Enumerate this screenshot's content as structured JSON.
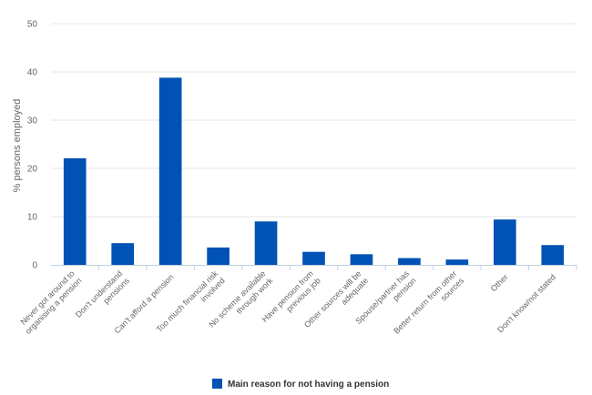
{
  "chart_data": {
    "type": "bar",
    "categories": [
      "Never got around to organising a pension",
      "Don't understand pensions",
      "Can't afford a pension",
      "Too much financial risk involved",
      "No scheme available through work",
      "Have pension from previous job",
      "Other sources will be adequate",
      "Spouse/partner has pension",
      "Better return from other sources",
      "Other",
      "Don't know/not stated"
    ],
    "series": [
      {
        "name": "Main reason for not having a pension",
        "values": [
          22.1,
          4.5,
          38.8,
          3.6,
          9.0,
          2.7,
          2.2,
          1.4,
          1.1,
          9.4,
          4.1
        ],
        "color": "#0052b4"
      }
    ],
    "title": "",
    "xlabel": "",
    "ylabel": "% persons employed",
    "ylim": [
      0,
      50
    ],
    "yticks": [
      0,
      10,
      20,
      30,
      40,
      50
    ],
    "grid": true,
    "legend": "bottom-center"
  }
}
